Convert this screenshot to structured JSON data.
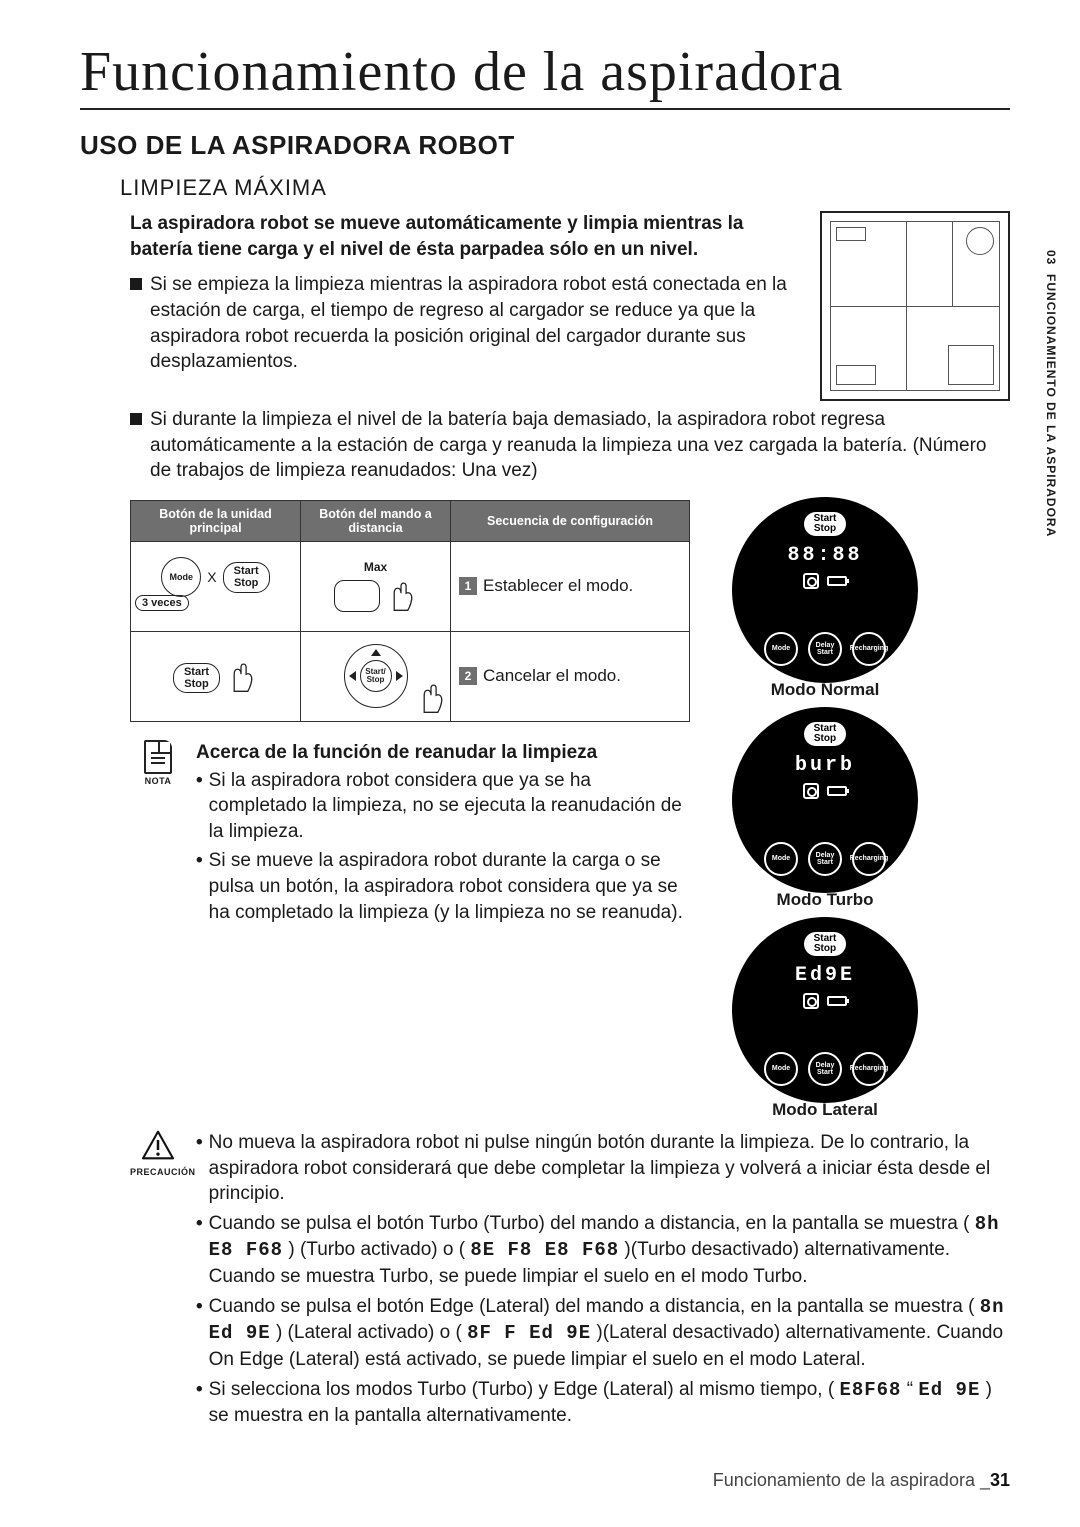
{
  "title": "Funcionamiento de la aspiradora",
  "h2": "USO DE LA ASPIRADORA ROBOT",
  "h3": "LIMPIEZA MÁXIMA",
  "side_tab": {
    "chapter": "03",
    "label": "FUNCIONAMIENTO DE LA ASPIRADORA"
  },
  "intro_bold": "La aspiradora robot se mueve automáticamente y limpia mientras la batería tiene carga y el nivel de ésta parpadea sólo en un nivel.",
  "bullets": [
    "Si se empieza la limpieza mientras la aspiradora robot está conectada en la estación de carga, el tiempo de regreso al cargador se reduce ya que la aspiradora robot recuerda la posición original del cargador durante sus desplazamientos.",
    "Si durante la limpieza el nivel de la batería baja demasiado, la aspiradora robot regresa automáticamente a la estación de carga y reanuda la limpieza una vez cargada la batería. (Número de trabajos de limpieza reanudados: Una vez)"
  ],
  "table": {
    "headers": [
      "Botón de la unidad principal",
      "Botón del mando a distancia",
      "Secuencia de configuración"
    ],
    "row1": {
      "main_btn_mode": "Mode",
      "main_btn_ss": "Start\nStop",
      "times": "3 veces",
      "x": "X",
      "remote_label_top": "Max",
      "step_num": "1",
      "step_text": "Establecer el modo."
    },
    "row2": {
      "main_btn_ss": "Start\nStop",
      "remote_center": "Start/\nStop",
      "step_num": "2",
      "step_text": "Cancelar el modo."
    }
  },
  "discs": [
    {
      "ss": "Start\nStop",
      "display": "88:88",
      "btns": [
        "Mode",
        "Delay\nStart",
        "Recharging"
      ],
      "label": "Modo Normal"
    },
    {
      "ss": "Start\nStop",
      "display": "burb",
      "btns": [
        "Mode",
        "Delay\nStart",
        "Recharging"
      ],
      "label": "Modo Turbo"
    },
    {
      "ss": "Start\nStop",
      "display": "Ed9E",
      "btns": [
        "Mode",
        "Delay\nStart",
        "Recharging"
      ],
      "label": "Modo Lateral"
    }
  ],
  "nota": {
    "icon_label": "NOTA",
    "title": "Acerca de la función de reanudar la limpieza",
    "items": [
      "Si la aspiradora robot considera que ya se ha completado la limpieza, no se ejecuta la reanudación de la limpieza.",
      "Si se mueve la aspiradora robot durante la carga o se pulsa un botón, la aspiradora robot considera que ya se ha completado la limpieza (y la limpieza no se reanuda)."
    ]
  },
  "precaucion": {
    "icon_label": "PRECAUCIÓN",
    "items": [
      "No mueva la aspiradora robot ni pulse ningún botón durante la limpieza. De lo contrario, la aspiradora robot considerará que debe completar la limpieza y volverá a iniciar ésta desde el principio.",
      "Cuando se pulsa el botón Turbo (Turbo) del mando a distancia, en la pantalla se muestra ( <span class='lcd'>8h E8 F68</span> ) (Turbo activado) o ( <span class='lcd'>8E F8 E8 F68</span> )(Turbo desactivado) alternativamente. Cuando se muestra Turbo, se puede limpiar el suelo en el modo Turbo.",
      "Cuando se pulsa el botón Edge (Lateral) del mando a distancia, en la pantalla se muestra ( <span class='lcd'>8n Ed 9E</span> ) (Lateral activado) o ( <span class='lcd'>8F F Ed 9E</span> )(Lateral desactivado) alternativamente. Cuando On Edge (Lateral) está activado, se puede limpiar el suelo en el modo Lateral.",
      "Si selecciona los modos Turbo (Turbo) y Edge (Lateral) al mismo tiempo, ( <span class='lcd'>E8F68</span> “ <span class='lcd'>Ed 9E</span> ) se muestra en la pantalla alternativamente."
    ]
  },
  "footer": {
    "text": "Funcionamiento de la aspiradora _",
    "page": "31"
  }
}
